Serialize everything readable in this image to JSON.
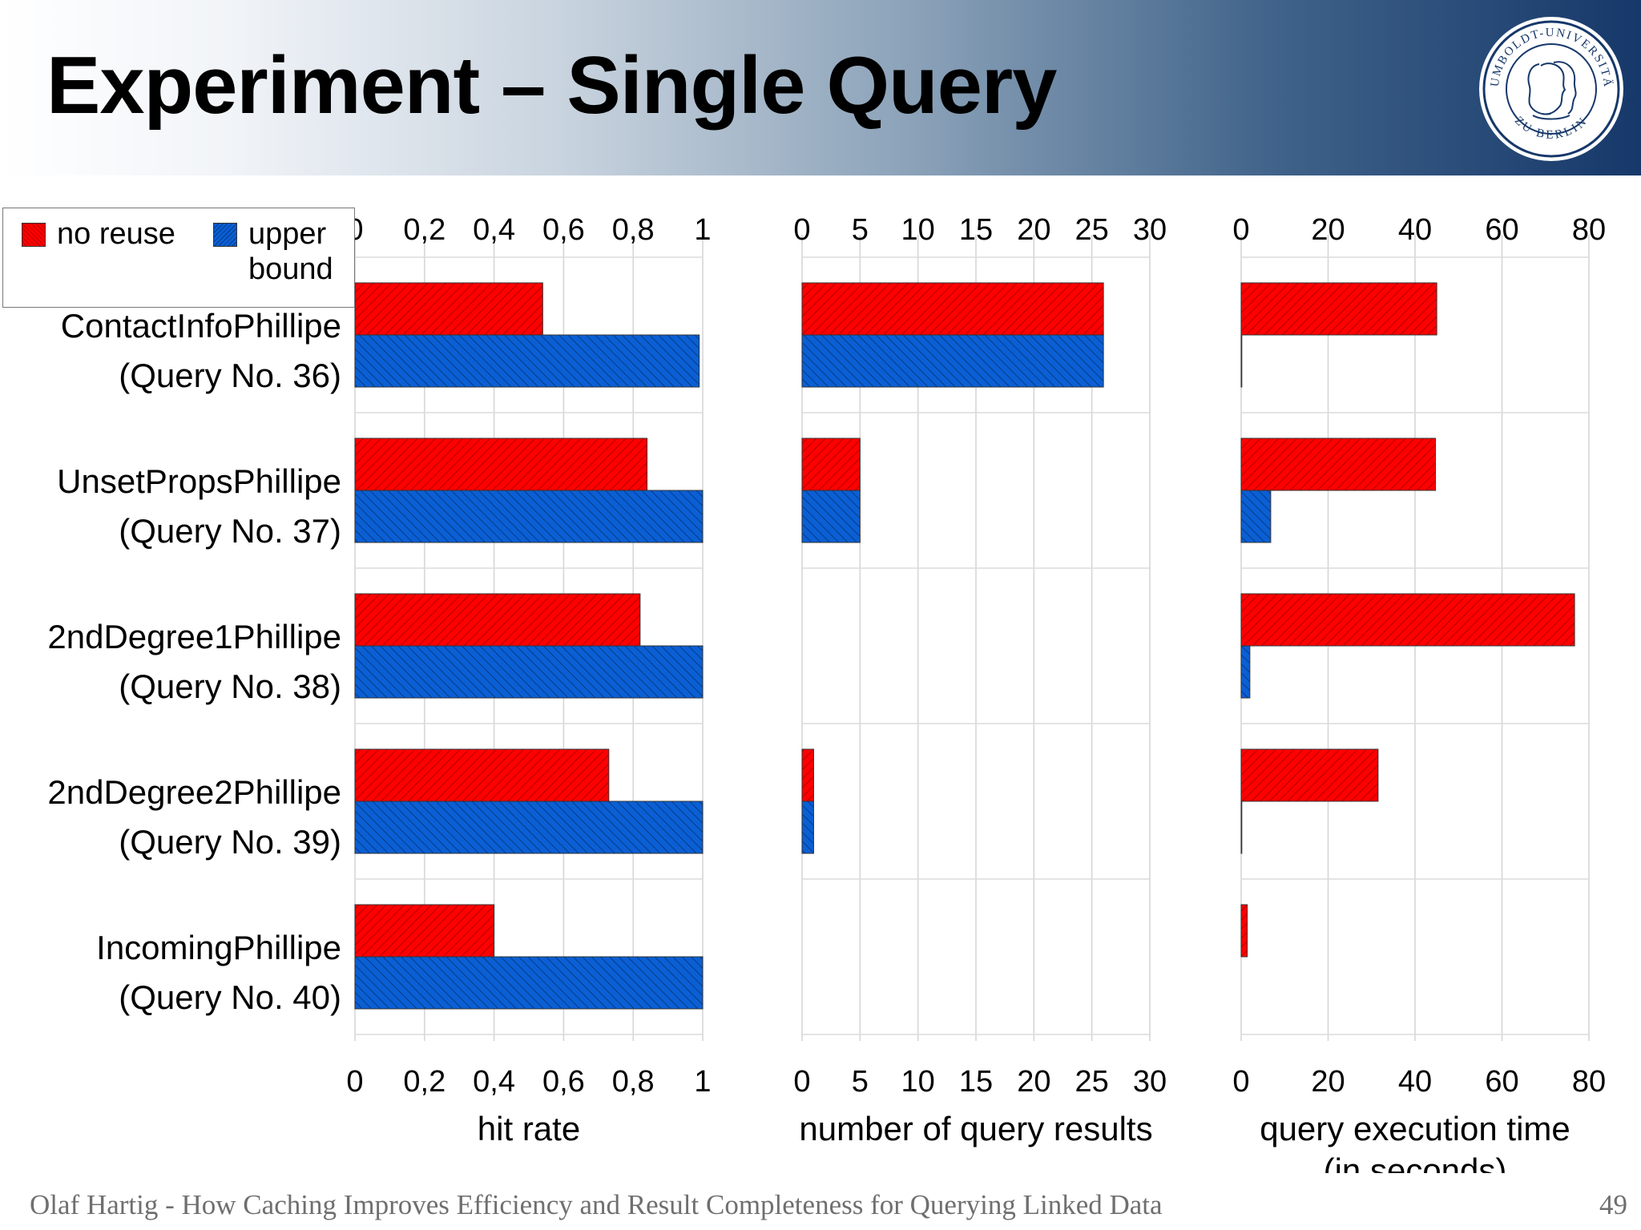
{
  "slide": {
    "title": "Experiment – Single Query",
    "footer": "Olaf Hartig - How Caching Improves Efficiency and Result Completeness for Querying Linked Data",
    "page_number": "49",
    "seal": {
      "ring_text": "HUMBOLDT-UNIVERSITÄT ZU BERLIN",
      "color": "#16386a"
    }
  },
  "legend": [
    {
      "label": "no reuse",
      "color": "#ff0000"
    },
    {
      "label": "upper bound",
      "color": "#0a5fd4"
    }
  ],
  "chart_data": [
    {
      "type": "bar",
      "orientation": "horizontal",
      "xlabel": "hit rate",
      "xlim": [
        0,
        1
      ],
      "ticks": [
        "0",
        "0,2",
        "0,4",
        "0,6",
        "0,8",
        "1"
      ],
      "categories": [
        [
          "ContactInfoPhillipe",
          "(Query No. 36)"
        ],
        [
          "UnsetPropsPhillipe",
          "(Query No. 37)"
        ],
        [
          "2ndDegree1Phillipe",
          "(Query No. 38)"
        ],
        [
          "2ndDegree2Phillipe",
          "(Query No. 39)"
        ],
        [
          "IncomingPhillipe",
          "(Query No. 40)"
        ]
      ],
      "series": [
        {
          "name": "no reuse",
          "values": [
            0.54,
            0.84,
            0.82,
            0.73,
            0.4
          ]
        },
        {
          "name": "upper bound",
          "values": [
            0.99,
            1.0,
            1.0,
            1.0,
            1.0
          ]
        }
      ],
      "grid": true,
      "legend": "top-left"
    },
    {
      "type": "bar",
      "orientation": "horizontal",
      "xlabel": "number of query results",
      "xlim": [
        0,
        30
      ],
      "ticks": [
        "0",
        "5",
        "10",
        "15",
        "20",
        "25",
        "30"
      ],
      "series": [
        {
          "name": "no reuse",
          "values": [
            26,
            5,
            0,
            1,
            0
          ]
        },
        {
          "name": "upper bound",
          "values": [
            26,
            5,
            0,
            1,
            0
          ]
        }
      ],
      "grid": true
    },
    {
      "type": "bar",
      "orientation": "horizontal",
      "xlabel": "query execution time (in seconds)",
      "xlabel_lines": [
        "query execution time",
        "(in seconds)"
      ],
      "xlim": [
        0,
        80
      ],
      "ticks": [
        "0",
        "20",
        "40",
        "60",
        "80"
      ],
      "series": [
        {
          "name": "no reuse",
          "values": [
            45,
            44.7,
            76.7,
            31.5,
            1.4
          ]
        },
        {
          "name": "upper bound",
          "values": [
            0.15,
            6.8,
            2.0,
            0.15,
            0
          ]
        }
      ],
      "grid": true
    }
  ]
}
